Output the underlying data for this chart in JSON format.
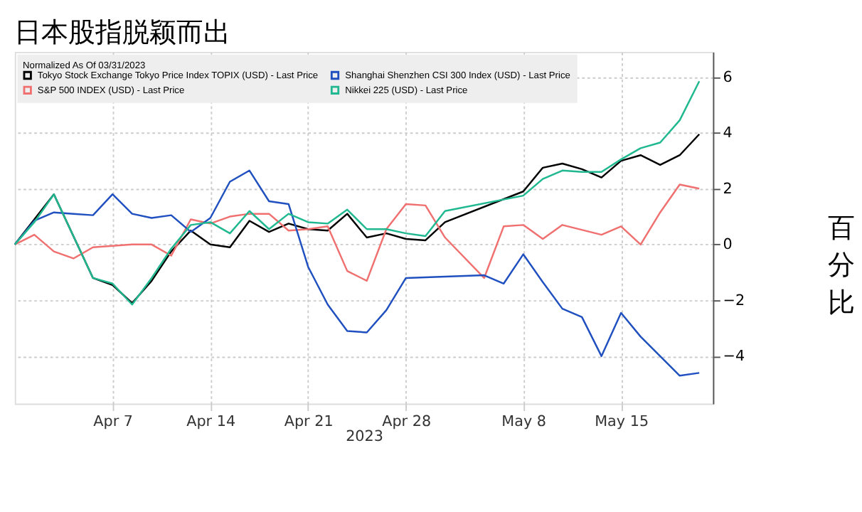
{
  "chart_data": {
    "type": "line",
    "title": "日本股指脱颖而出",
    "xlabel": "2023",
    "ylabel": "百分比",
    "legend_title": "Normalized As Of 03/31/2023",
    "categories": [
      null,
      null,
      null,
      null,
      null,
      "Apr 7",
      null,
      null,
      null,
      null,
      "Apr 14",
      null,
      null,
      null,
      null,
      "Apr 21",
      null,
      null,
      null,
      null,
      "Apr 28",
      null,
      null,
      null,
      null,
      null,
      "May 8",
      null,
      null,
      null,
      null,
      "May 15",
      null,
      null,
      null,
      null
    ],
    "series": [
      {
        "name": "Tokyo Stock Exchange Tokyo Price Index TOPIX (USD) - Last Price",
        "color": "#000000",
        "values": [
          0,
          0.9,
          1.8,
          null,
          -1.2,
          -1.45,
          -2.1,
          -1.3,
          -0.25,
          0.5,
          0,
          -0.1,
          0.85,
          0.45,
          0.75,
          0.55,
          0.5,
          1.1,
          0.25,
          0.4,
          0.2,
          0.15,
          0.8,
          null,
          null,
          null,
          1.9,
          2.75,
          2.9,
          2.7,
          2.4,
          3.0,
          3.2,
          2.85,
          3.2,
          3.95
        ]
      },
      {
        "name": "S&P 500 INDEX (USD) - Last Price",
        "color": "#f07070",
        "values": [
          0,
          0.35,
          -0.25,
          -0.5,
          -0.1,
          -0.05,
          0,
          0,
          -0.4,
          0.9,
          0.75,
          1.0,
          1.1,
          1.1,
          0.5,
          0.55,
          0.65,
          -0.95,
          -1.3,
          0.55,
          1.45,
          1.4,
          0.25,
          null,
          -1.2,
          0.65,
          0.7,
          0.2,
          0.7,
          null,
          0.35,
          0.65,
          0,
          1.15,
          2.15,
          2.0
        ]
      },
      {
        "name": "Shanghai Shenzhen CSI 300 Index (USD) - Last Price",
        "color": "#2050c0",
        "values": [
          0,
          0.85,
          1.15,
          1.1,
          1.05,
          1.8,
          1.1,
          0.95,
          1.05,
          0.45,
          0.95,
          2.25,
          2.65,
          1.55,
          1.45,
          -0.8,
          -2.15,
          -3.1,
          -3.15,
          -2.35,
          -1.2,
          null,
          null,
          null,
          -1.1,
          -1.4,
          -0.35,
          -1.35,
          -2.3,
          -2.6,
          -4.0,
          -2.45,
          -3.3,
          -4.0,
          -4.7,
          -4.6
        ]
      },
      {
        "name": "Nikkei 225 (USD) - Last Price",
        "color": "#20b890",
        "values": [
          0,
          0.8,
          1.8,
          null,
          -1.2,
          -1.4,
          -2.15,
          -1.2,
          -0.15,
          0.7,
          0.8,
          0.4,
          1.2,
          0.55,
          1.1,
          0.8,
          0.75,
          1.25,
          0.55,
          0.55,
          0.4,
          0.3,
          1.2,
          null,
          null,
          null,
          1.75,
          2.35,
          2.65,
          2.6,
          2.6,
          3.05,
          3.45,
          3.65,
          4.45,
          5.85
        ]
      }
    ],
    "ylim": [
      -5.7,
      6.9
    ],
    "yticks": [
      -4,
      -2,
      0,
      2,
      4,
      6
    ],
    "grid": true,
    "legend": "top left"
  }
}
